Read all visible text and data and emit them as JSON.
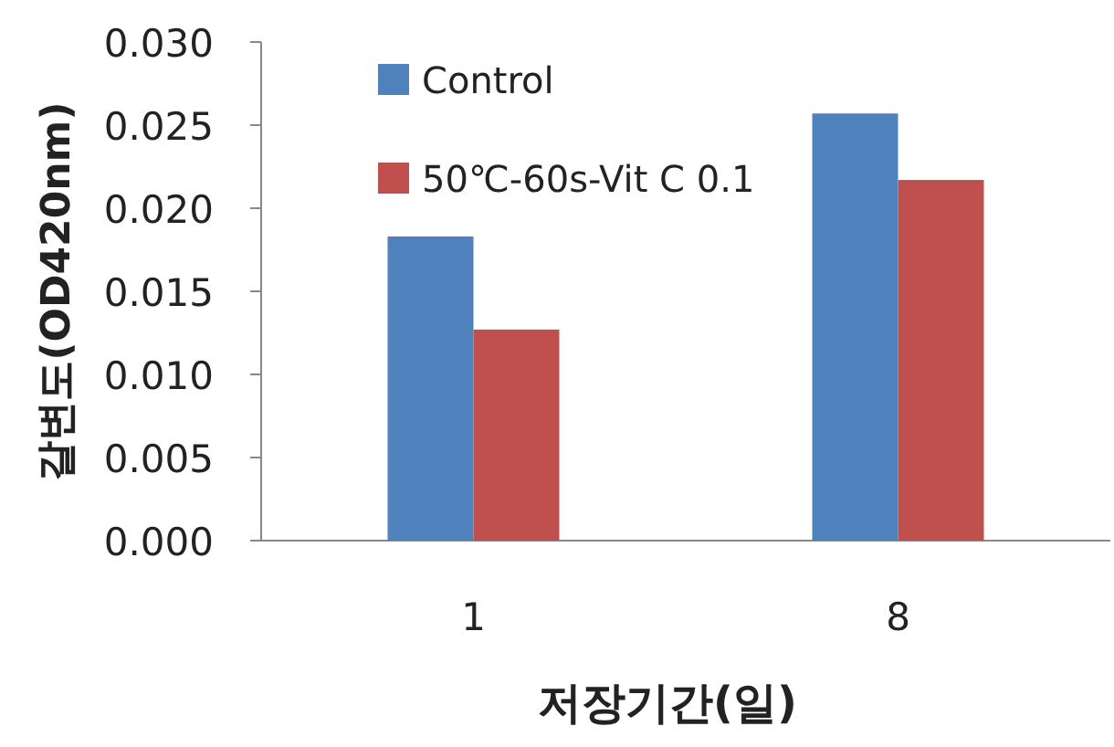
{
  "chart_data": {
    "type": "bar",
    "xlabel": "저장기간(일)",
    "ylabel": "갈변도(OD420nm)",
    "categories": [
      "1",
      "8"
    ],
    "series": [
      {
        "name": "Control",
        "color": "#4f81bd",
        "values": [
          0.0183,
          0.0257
        ]
      },
      {
        "name": "50℃-60s-Vit C 0.1",
        "color": "#c0504d",
        "values": [
          0.0127,
          0.0217
        ]
      }
    ],
    "ylim": [
      0,
      0.03
    ],
    "yticks": [
      {
        "value": 0,
        "label": "0.000"
      },
      {
        "value": 0.005,
        "label": "0.005"
      },
      {
        "value": 0.01,
        "label": "0.010"
      },
      {
        "value": 0.015,
        "label": "0.015"
      },
      {
        "value": 0.02,
        "label": "0.020"
      },
      {
        "value": 0.025,
        "label": "0.025"
      },
      {
        "value": 0.03,
        "label": "0.030"
      }
    ],
    "legend": "top left",
    "grid": false
  }
}
